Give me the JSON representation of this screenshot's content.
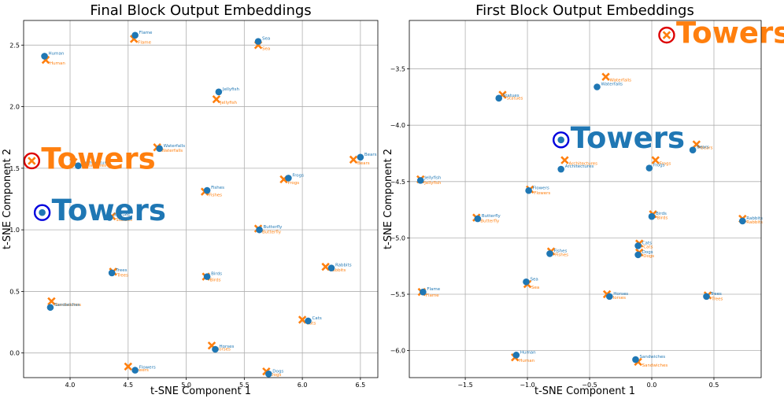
{
  "chart_data": [
    {
      "type": "scatter",
      "title": "Final Block Output Embeddings",
      "xlabel": "t-SNE Component 1",
      "ylabel": "t-SNE Component 2",
      "xlim": [
        3.6,
        6.65
      ],
      "ylim": [
        -0.2,
        2.7
      ],
      "xticks": [
        4.0,
        4.5,
        5.0,
        5.5,
        6.0,
        6.5
      ],
      "yticks": [
        0.0,
        0.5,
        1.0,
        1.5,
        2.0,
        2.5
      ],
      "grid": true,
      "colors": {
        "blue": "#1f77b4",
        "orange": "#ff7f0e",
        "red": "#dd0000",
        "darkblue": "#0000dd"
      },
      "series": [
        {
          "name": "blue",
          "marker": "circle",
          "points": [
            {
              "label": "Flame",
              "x": 4.56,
              "y": 2.58
            },
            {
              "label": "Sea",
              "x": 5.62,
              "y": 2.53
            },
            {
              "label": "Human",
              "x": 3.78,
              "y": 2.41
            },
            {
              "label": "Jellyfish",
              "x": 5.28,
              "y": 2.12
            },
            {
              "label": "Waterfalls",
              "x": 4.77,
              "y": 1.66
            },
            {
              "label": "Bears",
              "x": 6.5,
              "y": 1.59
            },
            {
              "label": "Architectures",
              "x": 4.07,
              "y": 1.52
            },
            {
              "label": "Frogs",
              "x": 5.88,
              "y": 1.42
            },
            {
              "label": "Fishes",
              "x": 5.18,
              "y": 1.32
            },
            {
              "label": "Statues",
              "x": 4.34,
              "y": 1.1
            },
            {
              "label": "Butterfly",
              "x": 5.63,
              "y": 1.0
            },
            {
              "label": "Rabbits",
              "x": 6.25,
              "y": 0.69
            },
            {
              "label": "Trees",
              "x": 4.36,
              "y": 0.65
            },
            {
              "label": "Birds",
              "x": 5.18,
              "y": 0.62
            },
            {
              "label": "Sandwiches",
              "x": 3.83,
              "y": 0.37
            },
            {
              "label": "Cats",
              "x": 6.05,
              "y": 0.26
            },
            {
              "label": "Horses",
              "x": 5.25,
              "y": 0.03
            },
            {
              "label": "Flowers",
              "x": 4.56,
              "y": -0.14
            },
            {
              "label": "Dogs",
              "x": 5.71,
              "y": -0.17
            }
          ]
        },
        {
          "name": "orange",
          "marker": "x",
          "points": [
            {
              "label": "Flame",
              "x": 4.55,
              "y": 2.55
            },
            {
              "label": "Sea",
              "x": 5.62,
              "y": 2.5
            },
            {
              "label": "Human",
              "x": 3.79,
              "y": 2.38
            },
            {
              "label": "Jellyfish",
              "x": 5.26,
              "y": 2.06
            },
            {
              "label": "Waterfalls",
              "x": 4.75,
              "y": 1.67
            },
            {
              "label": "Bears",
              "x": 6.44,
              "y": 1.57
            },
            {
              "label": "Architectures",
              "x": 4.03,
              "y": 1.55
            },
            {
              "label": "Frogs",
              "x": 5.84,
              "y": 1.41
            },
            {
              "label": "Fishes",
              "x": 5.16,
              "y": 1.31
            },
            {
              "label": "Statues",
              "x": 4.36,
              "y": 1.11
            },
            {
              "label": "Butterfly",
              "x": 5.62,
              "y": 1.01
            },
            {
              "label": "Rabbits",
              "x": 6.2,
              "y": 0.7
            },
            {
              "label": "Trees",
              "x": 4.37,
              "y": 0.66
            },
            {
              "label": "Birds",
              "x": 5.17,
              "y": 0.62
            },
            {
              "label": "Sandwiches",
              "x": 3.84,
              "y": 0.42
            },
            {
              "label": "Cats",
              "x": 6.0,
              "y": 0.27
            },
            {
              "label": "Horses",
              "x": 5.22,
              "y": 0.06
            },
            {
              "label": "Flowers",
              "x": 4.5,
              "y": -0.11
            },
            {
              "label": "Dogs",
              "x": 5.69,
              "y": -0.15
            }
          ]
        }
      ],
      "highlights": [
        {
          "label": "Towers",
          "color": "orange",
          "marker": "x",
          "ring": "red",
          "x": 3.67,
          "y": 1.56
        },
        {
          "label": "Towers",
          "color": "blue",
          "marker": "circle",
          "ring": "darkblue",
          "x": 3.76,
          "y": 1.14
        }
      ]
    },
    {
      "type": "scatter",
      "title": "First Block Output Embeddings",
      "xlabel": "t-SNE Component 1",
      "ylabel": "t-SNE Component 2",
      "xlim": [
        -1.95,
        0.88
      ],
      "ylim": [
        -6.24,
        -3.07
      ],
      "xticks": [
        -1.5,
        -1.0,
        -0.5,
        0.0,
        0.5
      ],
      "yticks": [
        -3.5,
        -4.0,
        -4.5,
        -5.0,
        -5.5,
        -6.0
      ],
      "grid": true,
      "colors": {
        "blue": "#1f77b4",
        "orange": "#ff7f0e",
        "red": "#dd0000",
        "darkblue": "#0000dd"
      },
      "series": [
        {
          "name": "blue",
          "marker": "circle",
          "points": [
            {
              "label": "Waterfalls",
              "x": -0.44,
              "y": -3.66
            },
            {
              "label": "Statues",
              "x": -1.23,
              "y": -3.76
            },
            {
              "label": "Bears",
              "x": 0.33,
              "y": -4.22
            },
            {
              "label": "Architectures",
              "x": -0.73,
              "y": -4.39
            },
            {
              "label": "Frogs",
              "x": -0.02,
              "y": -4.38
            },
            {
              "label": "Jellyfish",
              "x": -1.86,
              "y": -4.49
            },
            {
              "label": "Flowers",
              "x": -0.99,
              "y": -4.58
            },
            {
              "label": "Birds",
              "x": 0.0,
              "y": -4.81
            },
            {
              "label": "Butterfly",
              "x": -1.4,
              "y": -4.83
            },
            {
              "label": "Rabbits",
              "x": 0.73,
              "y": -4.85
            },
            {
              "label": "Cats",
              "x": -0.11,
              "y": -5.07
            },
            {
              "label": "Fishes",
              "x": -0.82,
              "y": -5.14
            },
            {
              "label": "Dogs",
              "x": -0.11,
              "y": -5.15
            },
            {
              "label": "Sea",
              "x": -1.01,
              "y": -5.39
            },
            {
              "label": "Flame",
              "x": -1.84,
              "y": -5.48
            },
            {
              "label": "Horses",
              "x": -0.34,
              "y": -5.52
            },
            {
              "label": "Trees",
              "x": 0.44,
              "y": -5.52
            },
            {
              "label": "Human",
              "x": -1.09,
              "y": -6.04
            },
            {
              "label": "Sandwiches",
              "x": -0.13,
              "y": -6.08
            }
          ]
        },
        {
          "name": "orange",
          "marker": "x",
          "points": [
            {
              "label": "Waterfalls",
              "x": -0.37,
              "y": -3.57
            },
            {
              "label": "Statues",
              "x": -1.2,
              "y": -3.73
            },
            {
              "label": "Bears",
              "x": 0.36,
              "y": -4.17
            },
            {
              "label": "Architectures",
              "x": -0.7,
              "y": -4.31
            },
            {
              "label": "Frogs",
              "x": 0.03,
              "y": -4.31
            },
            {
              "label": "Jellyfish",
              "x": -1.86,
              "y": -4.48
            },
            {
              "label": "Flowers",
              "x": -0.98,
              "y": -4.57
            },
            {
              "label": "Birds",
              "x": 0.01,
              "y": -4.79
            },
            {
              "label": "Butterfly",
              "x": -1.41,
              "y": -4.82
            },
            {
              "label": "Rabbits",
              "x": 0.73,
              "y": -4.83
            },
            {
              "label": "Cats",
              "x": -0.1,
              "y": -5.05
            },
            {
              "label": "Fishes",
              "x": -0.81,
              "y": -5.12
            },
            {
              "label": "Dogs",
              "x": -0.1,
              "y": -5.13
            },
            {
              "label": "Sea",
              "x": -1.0,
              "y": -5.41
            },
            {
              "label": "Flame",
              "x": -1.85,
              "y": -5.48
            },
            {
              "label": "Horses",
              "x": -0.36,
              "y": -5.5
            },
            {
              "label": "Trees",
              "x": 0.45,
              "y": -5.51
            },
            {
              "label": "Human",
              "x": -1.1,
              "y": -6.06
            },
            {
              "label": "Sandwiches",
              "x": -0.11,
              "y": -6.1
            }
          ]
        }
      ],
      "highlights": [
        {
          "label": "Towers",
          "color": "orange",
          "marker": "x",
          "ring": "red",
          "x": 0.12,
          "y": -3.2
        },
        {
          "label": "Towers",
          "color": "blue",
          "marker": "circle",
          "ring": "darkblue",
          "x": -0.73,
          "y": -4.13
        }
      ]
    }
  ]
}
